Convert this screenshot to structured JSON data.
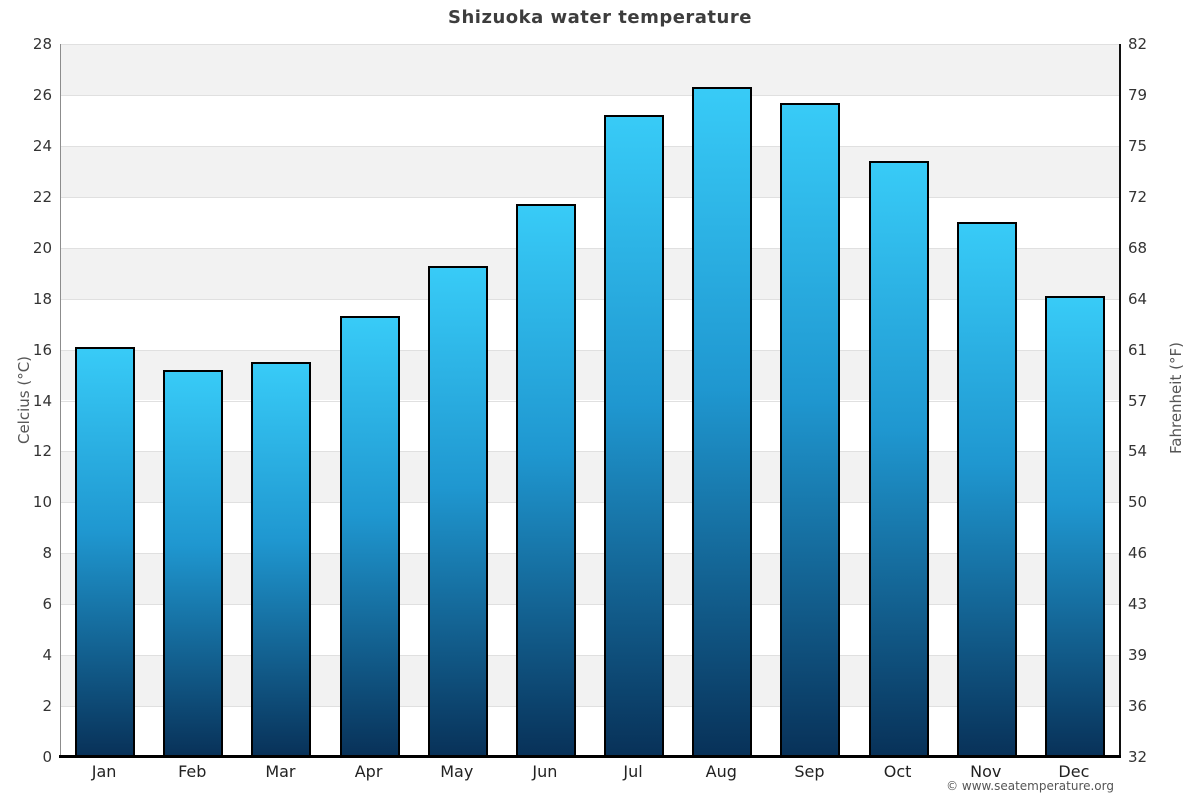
{
  "page": {
    "title": "Shizuoka water temperature",
    "attribution": "© www.seatemperature.org"
  },
  "chart_data": {
    "type": "bar",
    "title": "Shizuoka water temperature",
    "categories": [
      "Jan",
      "Feb",
      "Mar",
      "Apr",
      "May",
      "Jun",
      "Jul",
      "Aug",
      "Sep",
      "Oct",
      "Nov",
      "Dec"
    ],
    "values": [
      16.1,
      15.2,
      15.5,
      17.3,
      19.3,
      21.7,
      25.2,
      26.3,
      25.7,
      23.4,
      21.0,
      18.1
    ],
    "value_unit": "°C",
    "ylabel_left": "Celcius (°C)",
    "ylabel_right": "Fahrenheit (°F)",
    "ylim_celsius": [
      0,
      28
    ],
    "ylim_fahrenheit": [
      32,
      82
    ],
    "yticks_celsius": [
      0,
      2,
      4,
      6,
      8,
      10,
      12,
      14,
      16,
      18,
      20,
      22,
      24,
      26,
      28
    ],
    "yticks_fahrenheit_labels": [
      "32",
      "36",
      "39",
      "43",
      "46",
      "50",
      "54",
      "57",
      "61",
      "64",
      "68",
      "72",
      "75",
      "79",
      "82"
    ],
    "legend_position": "none",
    "grid": "alternating horizontal bands every 2°C",
    "colors": {
      "bar_gradient_top": "#38cbf7",
      "bar_gradient_mid": "#1f97d0",
      "bar_gradient_bottom": "#083158",
      "bar_border": "#000000",
      "band_gray": "#f2f2f2",
      "band_white": "#ffffff",
      "gridline": "#e0e0e0",
      "baseline": "#000000",
      "title_text": "#3d3d3d",
      "tick_text": "#333333",
      "month_text": "#222222",
      "axis_title_text": "#555555",
      "attribution_text": "#555555"
    }
  }
}
